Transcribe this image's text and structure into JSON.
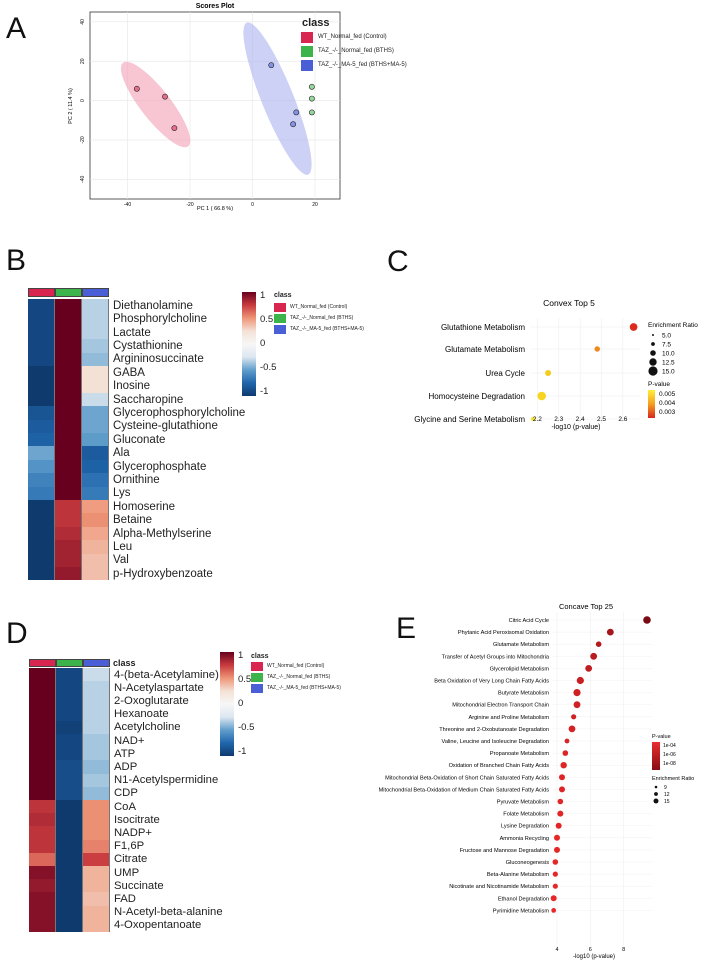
{
  "colors": {
    "control": "#d92651",
    "bths": "#3cb44b",
    "bths_ma5": "#4a5fd6"
  },
  "panelA": {
    "letter": "A",
    "title": "Scores Plot",
    "xlabel": "PC 1 ( 66.8 %)",
    "ylabel": "PC 2 ( 11.4 %)",
    "legend_title": "class",
    "legend": [
      "WT_Normal_fed (Control)",
      "TAZ_-/-_Normal_fed (BTHS)",
      "TAZ_-/-_MA-5_fed (BTHS+MA-5)"
    ],
    "xticks": [
      "-40",
      "-20",
      "0",
      "20"
    ],
    "yticks": [
      "40",
      "20",
      "0",
      "-20",
      "-40"
    ]
  },
  "chart_data": [
    {
      "type": "scatter",
      "title": "Scores Plot",
      "xlabel": "PC 1 ( 66.8 %)",
      "ylabel": "PC 2 ( 11.4 %)",
      "xlim": [
        -52,
        28
      ],
      "ylim": [
        -50,
        45
      ],
      "series": [
        {
          "name": "WT_Normal_fed (Control)",
          "x": [
            -37,
            -28,
            -25
          ],
          "y": [
            6,
            2,
            -14
          ]
        },
        {
          "name": "TAZ_-/-_Normal_fed (BTHS)",
          "x": [
            19,
            19,
            19
          ],
          "y": [
            7,
            1,
            -6
          ]
        },
        {
          "name": "TAZ_-/-_MA-5_fed (BTHS+MA-5)",
          "x": [
            6,
            14,
            13
          ],
          "y": [
            18,
            -6,
            -12
          ]
        }
      ]
    },
    {
      "type": "scatter",
      "title": "Convex Top 5",
      "xlabel": "-log10 (p-value)",
      "xticks": [
        "2.2",
        "2.3",
        "2.4",
        "2.5",
        "2.6"
      ],
      "xlim": [
        2.17,
        2.68
      ],
      "size_legend_title": "Enrichment Ratio",
      "size_legend": [
        "5.0",
        "7.5",
        "10.0",
        "12.5",
        "15.0"
      ],
      "color_legend_title": "P-value",
      "color_legend": [
        "0.005",
        "0.004",
        "0.003"
      ],
      "categories": [
        "Glutathione Metabolism",
        "Glutamate Metabolism",
        "Urea Cycle",
        "Homocysteine Degradation",
        "Glycine and Serine Metabolism"
      ],
      "x": [
        2.65,
        2.48,
        2.25,
        2.22,
        2.18
      ],
      "size": [
        12,
        7,
        8,
        14,
        5
      ],
      "color": [
        "#dc2a1e",
        "#ec8a1c",
        "#f5cc1a",
        "#f7d41f",
        "#f7e238"
      ]
    },
    {
      "type": "scatter",
      "title": "Concave Top 25",
      "xlabel": "-log10 (p-value)",
      "xticks": [
        "4",
        "6",
        "8"
      ],
      "xlim": [
        3.7,
        9.7
      ],
      "size_legend_title": "Enrichment Ratio",
      "size_legend": [
        "9",
        "12",
        "15"
      ],
      "color_legend_title": "P-value",
      "color_legend": [
        "1e-04",
        "1e-06",
        "1e-08"
      ],
      "categories": [
        "Citric Acid Cycle",
        "Phytanic Acid Peroxisomal Oxidation",
        "Glutamate Metabolism",
        "Transfer of Acetyl Groups into Mitochondria",
        "Glycerolipid Metabolism",
        "Beta Oxidation of Very Long Chain Fatty Acids",
        "Butyrate Metabolism",
        "Mitochondrial Electron Transport Chain",
        "Arginine and Proline Metabolism",
        "Threonine and 2-Oxobutanoate Degradation",
        "Valine, Leucine and Isoleucine Degradation",
        "Propanoate Metabolism",
        "Oxidation of Branched Chain Fatty Acids",
        "Mitochondrial Beta-Oxidation of Short Chain Saturated Fatty Acids",
        "Mitochondrial Beta-Oxidation of Medium Chain Saturated Fatty Acids",
        "Pyruvate Metabolism",
        "Folate Metabolism",
        "Lysine Degradation",
        "Ammonia Recycling",
        "Fructose and Mannose Degradation",
        "Gluconeogenesis",
        "Beta-Alanine Metabolism",
        "Nicotinate and Nicotinamide Metabolism",
        "Ethanol Degradation",
        "Pyrimidine Metabolism"
      ],
      "x": [
        9.4,
        7.2,
        6.5,
        6.2,
        5.9,
        5.4,
        5.2,
        5.2,
        5.0,
        4.9,
        4.6,
        4.5,
        4.4,
        4.3,
        4.3,
        4.2,
        4.2,
        4.1,
        4.0,
        4.0,
        3.9,
        3.9,
        3.9,
        3.8,
        3.8
      ],
      "size": [
        15,
        13,
        10,
        13,
        13,
        14,
        14,
        13,
        9,
        13,
        8,
        10,
        12,
        11,
        11,
        10,
        11,
        11,
        11,
        11,
        10,
        9,
        9,
        11,
        8
      ]
    }
  ],
  "panelB": {
    "letter": "B",
    "legend_title": "class",
    "legend": [
      "WT_Normal_fed (Control)",
      "TAZ_-/-_Normal_fed (BTHS)",
      "TAZ_-/-_MA-5_fed (BTHS+MA-5)"
    ],
    "scale": [
      "1",
      "0.5",
      "0",
      "-0.5",
      "-1"
    ],
    "metabolites": [
      "Diethanolamine",
      "Phosphorylcholine",
      "Lactate",
      "Cystathionine",
      "Argininosuccinate",
      "GABA",
      "Inosine",
      "Saccharopine",
      "Glycerophosphorylcholine",
      "Cysteine-glutathione",
      "Gluconate",
      "Ala",
      "Glycerophosphate",
      "Ornithine",
      "Lys",
      "Homoserine",
      "Betaine",
      "Alpha-Methylserine",
      "Leu",
      "Val",
      "p-Hydroxybenzoate"
    ],
    "values": [
      [
        -0.9,
        1.0,
        -0.1
      ],
      [
        -0.9,
        1.0,
        -0.1
      ],
      [
        -0.9,
        1.0,
        -0.1
      ],
      [
        -0.9,
        1.0,
        -0.15
      ],
      [
        -0.9,
        1.0,
        -0.2
      ],
      [
        -1.0,
        1.0,
        0.0
      ],
      [
        -1.0,
        1.0,
        0.0
      ],
      [
        -1.0,
        1.0,
        -0.05
      ],
      [
        -0.8,
        1.0,
        -0.3
      ],
      [
        -0.75,
        1.0,
        -0.3
      ],
      [
        -0.7,
        1.0,
        -0.35
      ],
      [
        -0.3,
        1.0,
        -0.75
      ],
      [
        -0.4,
        1.0,
        -0.7
      ],
      [
        -0.5,
        1.0,
        -0.6
      ],
      [
        -0.55,
        1.0,
        -0.55
      ],
      [
        -1.0,
        0.7,
        0.3
      ],
      [
        -1.0,
        0.7,
        0.35
      ],
      [
        -1.0,
        0.75,
        0.25
      ],
      [
        -1.0,
        0.8,
        0.2
      ],
      [
        -1.0,
        0.8,
        0.15
      ],
      [
        -1.0,
        0.85,
        0.15
      ]
    ]
  },
  "panelC": {
    "letter": "C",
    "title": "Convex Top 5",
    "xlabel": "-log10 (p-value)",
    "size_title": "Enrichment Ratio",
    "color_title": "P-value"
  },
  "panelD": {
    "letter": "D",
    "header": "class",
    "legend_title": "class",
    "legend": [
      "WT_Normal_fed (Control)",
      "TAZ_-/-_Normal_fed (BTHS)",
      "TAZ_-/-_MA-5_fed (BTHS+MA-5)"
    ],
    "scale": [
      "1",
      "0.5",
      "0",
      "-0.5",
      "-1"
    ],
    "metabolites": [
      "4-(beta-Acetylamine)",
      "N-Acetylaspartate",
      "2-Oxoglutarate",
      "Hexanoate",
      "Acetylcholine",
      "NAD+",
      "ATP",
      "ADP",
      "N1-Acetylspermidine",
      "CDP",
      "CoA",
      "Isocitrate",
      "NADP+",
      "F1,6P",
      "Citrate",
      "UMP",
      "Succinate",
      "FAD",
      "N-Acetyl-beta-alanine",
      "4-Oxopentanoate"
    ],
    "values": [
      [
        1.0,
        -0.9,
        -0.05
      ],
      [
        1.0,
        -0.9,
        -0.1
      ],
      [
        1.0,
        -0.9,
        -0.1
      ],
      [
        1.0,
        -0.9,
        -0.1
      ],
      [
        1.0,
        -0.95,
        -0.1
      ],
      [
        1.0,
        -0.9,
        -0.15
      ],
      [
        1.0,
        -0.9,
        -0.15
      ],
      [
        1.0,
        -0.85,
        -0.2
      ],
      [
        1.0,
        -0.85,
        -0.15
      ],
      [
        1.0,
        -0.85,
        -0.2
      ],
      [
        0.7,
        -1.0,
        0.35
      ],
      [
        0.75,
        -1.0,
        0.35
      ],
      [
        0.7,
        -1.0,
        0.35
      ],
      [
        0.7,
        -1.0,
        0.4
      ],
      [
        0.5,
        -1.0,
        0.65
      ],
      [
        0.9,
        -1.0,
        0.2
      ],
      [
        0.85,
        -1.0,
        0.2
      ],
      [
        0.9,
        -1.0,
        0.15
      ],
      [
        0.9,
        -1.0,
        0.2
      ],
      [
        0.9,
        -1.0,
        0.2
      ]
    ]
  },
  "panelE": {
    "letter": "E",
    "title": "Concave Top 25",
    "xlabel": "-log10 (p-value)",
    "color_title": "P-value",
    "size_title": "Enrichment Ratio"
  }
}
